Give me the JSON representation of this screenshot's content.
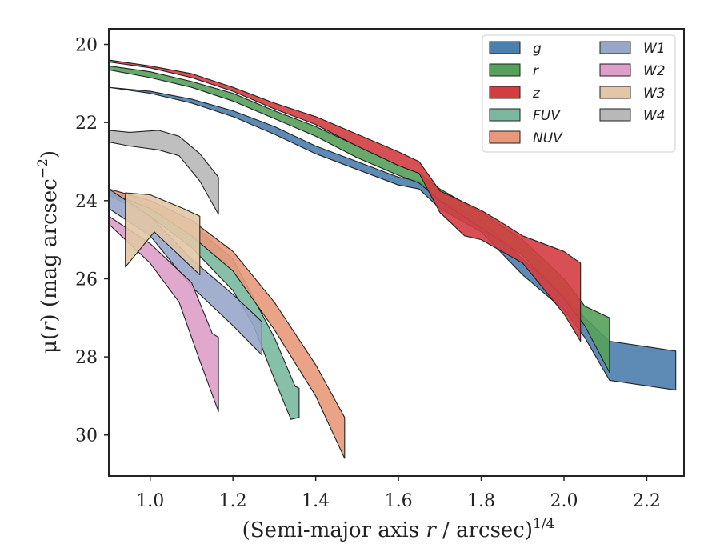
{
  "chart_data": {
    "type": "area",
    "xlabel_main": "(Semi-major axis ",
    "xlabel_var": "r",
    "xlabel_tail": " / arcsec)",
    "xlabel_exp": "1/4",
    "ylabel_main": "μ(",
    "ylabel_var": "r",
    "ylabel_tail": ") (mag arcsec",
    "ylabel_exp": "−2",
    "ylabel_close": ")",
    "xlim": [
      0.9,
      2.29
    ],
    "ylim": [
      31.05,
      19.6
    ],
    "y_inverted": true,
    "xticks": [
      1.0,
      1.2,
      1.4,
      1.6,
      1.8,
      2.0,
      2.2
    ],
    "xtick_labels": [
      "1.0",
      "1.2",
      "1.4",
      "1.6",
      "1.8",
      "2.0",
      "2.2"
    ],
    "yticks": [
      20,
      22,
      24,
      26,
      28,
      30
    ],
    "ytick_labels": [
      "20",
      "22",
      "24",
      "26",
      "28",
      "30"
    ],
    "grid": false,
    "legend_position": "top-right",
    "legend_columns": 2,
    "series": [
      {
        "name": "g",
        "color": "#4c7eae",
        "upper": [
          [
            0.9,
            21.1
          ],
          [
            1.0,
            21.2
          ],
          [
            1.1,
            21.4
          ],
          [
            1.2,
            21.7
          ],
          [
            1.3,
            22.1
          ],
          [
            1.4,
            22.6
          ],
          [
            1.5,
            23.0
          ],
          [
            1.6,
            23.4
          ],
          [
            1.65,
            23.5
          ],
          [
            1.7,
            24.0
          ],
          [
            1.8,
            24.5
          ],
          [
            1.9,
            25.5
          ],
          [
            2.0,
            26.4
          ],
          [
            2.05,
            27.0
          ],
          [
            2.11,
            27.6
          ],
          [
            2.27,
            27.85
          ]
        ],
        "lower": [
          [
            0.9,
            21.1
          ],
          [
            1.0,
            21.25
          ],
          [
            1.1,
            21.5
          ],
          [
            1.2,
            21.85
          ],
          [
            1.3,
            22.3
          ],
          [
            1.4,
            22.8
          ],
          [
            1.5,
            23.2
          ],
          [
            1.6,
            23.6
          ],
          [
            1.65,
            23.7
          ],
          [
            1.7,
            24.2
          ],
          [
            1.8,
            24.8
          ],
          [
            1.9,
            25.9
          ],
          [
            2.0,
            26.8
          ],
          [
            2.05,
            27.5
          ],
          [
            2.11,
            28.6
          ],
          [
            2.27,
            28.85
          ]
        ]
      },
      {
        "name": "r",
        "color": "#55a05a",
        "upper": [
          [
            0.9,
            20.55
          ],
          [
            1.0,
            20.7
          ],
          [
            1.1,
            20.95
          ],
          [
            1.2,
            21.25
          ],
          [
            1.3,
            21.7
          ],
          [
            1.4,
            22.1
          ],
          [
            1.5,
            22.6
          ],
          [
            1.6,
            23.1
          ],
          [
            1.65,
            23.3
          ],
          [
            1.7,
            23.7
          ],
          [
            1.8,
            24.3
          ],
          [
            1.9,
            25.0
          ],
          [
            2.0,
            26.0
          ],
          [
            2.05,
            26.7
          ],
          [
            2.11,
            27.0
          ]
        ],
        "lower": [
          [
            0.9,
            20.65
          ],
          [
            1.0,
            20.85
          ],
          [
            1.1,
            21.1
          ],
          [
            1.2,
            21.45
          ],
          [
            1.3,
            21.9
          ],
          [
            1.4,
            22.35
          ],
          [
            1.5,
            22.9
          ],
          [
            1.6,
            23.35
          ],
          [
            1.65,
            23.55
          ],
          [
            1.7,
            24.0
          ],
          [
            1.8,
            24.7
          ],
          [
            1.9,
            25.4
          ],
          [
            2.0,
            26.5
          ],
          [
            2.05,
            27.2
          ],
          [
            2.11,
            28.4
          ]
        ]
      },
      {
        "name": "z",
        "color": "#d43d40",
        "upper": [
          [
            0.9,
            20.4
          ],
          [
            1.0,
            20.55
          ],
          [
            1.1,
            20.75
          ],
          [
            1.2,
            21.1
          ],
          [
            1.3,
            21.5
          ],
          [
            1.4,
            21.85
          ],
          [
            1.5,
            22.3
          ],
          [
            1.6,
            22.75
          ],
          [
            1.65,
            23.0
          ],
          [
            1.7,
            23.75
          ],
          [
            1.8,
            24.25
          ],
          [
            1.84,
            24.5
          ],
          [
            1.9,
            24.9
          ],
          [
            2.0,
            25.3
          ],
          [
            2.04,
            25.6
          ]
        ],
        "lower": [
          [
            0.9,
            20.45
          ],
          [
            1.0,
            20.6
          ],
          [
            1.1,
            20.85
          ],
          [
            1.2,
            21.2
          ],
          [
            1.3,
            21.65
          ],
          [
            1.4,
            22.05
          ],
          [
            1.5,
            22.6
          ],
          [
            1.6,
            23.1
          ],
          [
            1.65,
            23.3
          ],
          [
            1.7,
            24.3
          ],
          [
            1.76,
            24.9
          ],
          [
            1.8,
            25.0
          ],
          [
            1.9,
            25.6
          ],
          [
            2.0,
            26.9
          ],
          [
            2.04,
            27.6
          ]
        ]
      },
      {
        "name": "FUV",
        "color": "#7ab99f",
        "upper": [
          [
            0.9,
            23.75
          ],
          [
            1.0,
            24.1
          ],
          [
            1.1,
            24.6
          ],
          [
            1.2,
            25.5
          ],
          [
            1.25,
            26.5
          ],
          [
            1.3,
            27.5
          ],
          [
            1.35,
            28.75
          ],
          [
            1.36,
            28.8
          ]
        ],
        "lower": [
          [
            0.9,
            23.85
          ],
          [
            1.0,
            24.4
          ],
          [
            1.1,
            25.2
          ],
          [
            1.2,
            26.3
          ],
          [
            1.25,
            27.2
          ],
          [
            1.29,
            28.3
          ],
          [
            1.34,
            29.6
          ],
          [
            1.36,
            29.55
          ]
        ]
      },
      {
        "name": "NUV",
        "color": "#e8997a",
        "upper": [
          [
            0.9,
            23.7
          ],
          [
            1.0,
            24.0
          ],
          [
            1.1,
            24.5
          ],
          [
            1.2,
            25.3
          ],
          [
            1.3,
            26.6
          ],
          [
            1.4,
            28.2
          ],
          [
            1.47,
            29.55
          ]
        ],
        "lower": [
          [
            0.9,
            23.8
          ],
          [
            1.0,
            24.2
          ],
          [
            1.1,
            24.9
          ],
          [
            1.2,
            25.8
          ],
          [
            1.3,
            27.3
          ],
          [
            1.4,
            29.0
          ],
          [
            1.47,
            30.6
          ]
        ]
      },
      {
        "name": "W1",
        "color": "#98a6c9",
        "upper": [
          [
            0.9,
            23.7
          ],
          [
            1.0,
            24.4
          ],
          [
            1.1,
            25.5
          ],
          [
            1.2,
            26.4
          ],
          [
            1.27,
            27.1
          ]
        ],
        "lower": [
          [
            0.9,
            24.2
          ],
          [
            1.0,
            24.9
          ],
          [
            1.1,
            26.2
          ],
          [
            1.2,
            27.2
          ],
          [
            1.27,
            27.95
          ]
        ]
      },
      {
        "name": "W2",
        "color": "#de9fc9",
        "upper": [
          [
            0.9,
            24.4
          ],
          [
            1.0,
            25.1
          ],
          [
            1.1,
            26.1
          ],
          [
            1.15,
            27.4
          ],
          [
            1.165,
            27.5
          ]
        ],
        "lower": [
          [
            0.9,
            24.6
          ],
          [
            1.0,
            25.6
          ],
          [
            1.07,
            26.6
          ],
          [
            1.12,
            28.1
          ],
          [
            1.165,
            29.4
          ]
        ]
      },
      {
        "name": "W3",
        "color": "#e2c6a6",
        "upper": [
          [
            0.94,
            23.8
          ],
          [
            1.0,
            23.85
          ],
          [
            1.08,
            24.2
          ],
          [
            1.12,
            24.4
          ]
        ],
        "lower": [
          [
            0.94,
            25.7
          ],
          [
            1.01,
            24.8
          ],
          [
            1.08,
            25.5
          ],
          [
            1.12,
            25.9
          ]
        ]
      },
      {
        "name": "W4",
        "color": "#b8b8b8",
        "upper": [
          [
            0.9,
            22.2
          ],
          [
            0.95,
            22.25
          ],
          [
            1.02,
            22.2
          ],
          [
            1.07,
            22.35
          ],
          [
            1.12,
            22.8
          ],
          [
            1.165,
            23.4
          ]
        ],
        "lower": [
          [
            0.9,
            22.5
          ],
          [
            0.95,
            22.6
          ],
          [
            1.02,
            22.7
          ],
          [
            1.07,
            22.85
          ],
          [
            1.12,
            23.5
          ],
          [
            1.165,
            24.35
          ]
        ]
      }
    ]
  }
}
